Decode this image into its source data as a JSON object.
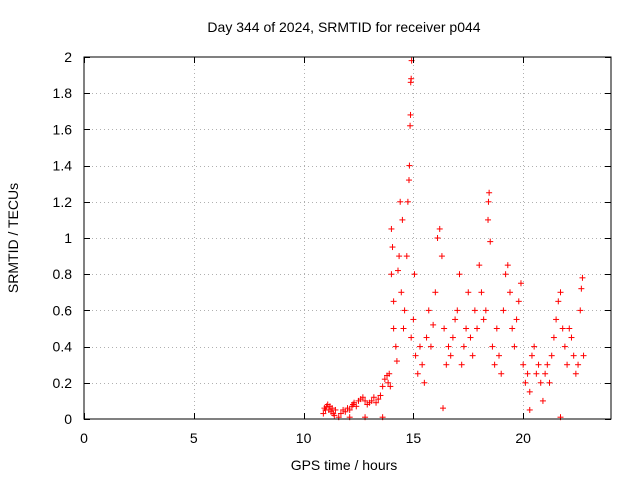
{
  "chart_data": {
    "type": "scatter",
    "title": "Day 344 of 2024, SRMTID for receiver p044",
    "xlabel": "GPS time / hours",
    "ylabel": "SRMTID / TECUs",
    "xlim": [
      0,
      24
    ],
    "ylim": [
      0,
      2
    ],
    "xticks": [
      0,
      5,
      10,
      15,
      20
    ],
    "xtick_labels": [
      "0",
      "5",
      "10",
      "15",
      "20"
    ],
    "yticks": [
      0,
      0.2,
      0.4,
      0.6,
      0.8,
      1.0,
      1.2,
      1.4,
      1.6,
      1.8,
      2.0
    ],
    "ytick_labels": [
      "0",
      "0.2",
      "0.4",
      "0.6",
      "0.8",
      "1",
      "1.2",
      "1.4",
      "1.6",
      "1.8",
      "2"
    ],
    "grid": true,
    "marker": "+",
    "marker_color": "#ff0000",
    "series": [
      {
        "name": "SRMTID",
        "points": [
          [
            10.9,
            0.03
          ],
          [
            10.95,
            0.06
          ],
          [
            11.0,
            0.05
          ],
          [
            11.05,
            0.07
          ],
          [
            11.1,
            0.08
          ],
          [
            11.15,
            0.05
          ],
          [
            11.2,
            0.07
          ],
          [
            11.25,
            0.04
          ],
          [
            11.3,
            0.06
          ],
          [
            11.35,
            0.03
          ],
          [
            11.4,
            0.02
          ],
          [
            11.45,
            0.05
          ],
          [
            11.6,
            0.01
          ],
          [
            11.7,
            0.03
          ],
          [
            11.8,
            0.05
          ],
          [
            11.9,
            0.04
          ],
          [
            12.0,
            0.06
          ],
          [
            12.1,
            0.05
          ],
          [
            12.2,
            0.07
          ],
          [
            12.25,
            0.08
          ],
          [
            12.3,
            0.09
          ],
          [
            12.4,
            0.07
          ],
          [
            12.5,
            0.1
          ],
          [
            12.6,
            0.11
          ],
          [
            12.7,
            0.12
          ],
          [
            12.8,
            0.1
          ],
          [
            12.9,
            0.08
          ],
          [
            13.0,
            0.09
          ],
          [
            13.1,
            0.1
          ],
          [
            13.2,
            0.12
          ],
          [
            13.3,
            0.09
          ],
          [
            13.4,
            0.11
          ],
          [
            13.5,
            0.13
          ],
          [
            13.6,
            0.18
          ],
          [
            13.7,
            0.22
          ],
          [
            13.8,
            0.24
          ],
          [
            13.85,
            0.2
          ],
          [
            13.9,
            0.25
          ],
          [
            13.95,
            0.18
          ],
          [
            12.1,
            0.01
          ],
          [
            12.8,
            0.01
          ],
          [
            13.6,
            0.01
          ],
          [
            14.0,
            0.8
          ],
          [
            14.0,
            1.05
          ],
          [
            14.05,
            0.95
          ],
          [
            14.1,
            0.5
          ],
          [
            14.1,
            0.65
          ],
          [
            14.2,
            0.4
          ],
          [
            14.25,
            0.32
          ],
          [
            14.3,
            0.82
          ],
          [
            14.35,
            0.9
          ],
          [
            14.4,
            1.2
          ],
          [
            14.45,
            0.7
          ],
          [
            14.5,
            1.1
          ],
          [
            14.55,
            0.5
          ],
          [
            14.6,
            0.6
          ],
          [
            14.7,
            0.9
          ],
          [
            14.75,
            1.2
          ],
          [
            14.8,
            1.32
          ],
          [
            14.82,
            1.4
          ],
          [
            14.85,
            1.62
          ],
          [
            14.87,
            1.68
          ],
          [
            14.88,
            1.86
          ],
          [
            14.9,
            1.88
          ],
          [
            14.92,
            1.98
          ],
          [
            14.9,
            0.45
          ],
          [
            15.0,
            0.55
          ],
          [
            15.05,
            0.8
          ],
          [
            15.1,
            0.35
          ],
          [
            15.2,
            0.25
          ],
          [
            15.3,
            0.4
          ],
          [
            15.4,
            0.3
          ],
          [
            15.5,
            0.2
          ],
          [
            15.6,
            0.45
          ],
          [
            15.7,
            0.6
          ],
          [
            15.8,
            0.4
          ],
          [
            15.9,
            0.52
          ],
          [
            16.0,
            0.7
          ],
          [
            16.1,
            1.0
          ],
          [
            16.2,
            1.05
          ],
          [
            16.3,
            0.9
          ],
          [
            16.35,
            0.06
          ],
          [
            16.4,
            0.5
          ],
          [
            16.5,
            0.3
          ],
          [
            16.6,
            0.4
          ],
          [
            16.7,
            0.35
          ],
          [
            16.8,
            0.45
          ],
          [
            16.9,
            0.55
          ],
          [
            17.0,
            0.6
          ],
          [
            17.1,
            0.8
          ],
          [
            17.2,
            0.3
          ],
          [
            17.3,
            0.4
          ],
          [
            17.4,
            0.5
          ],
          [
            17.5,
            0.7
          ],
          [
            17.6,
            0.45
          ],
          [
            17.7,
            0.35
          ],
          [
            17.8,
            0.6
          ],
          [
            17.9,
            0.5
          ],
          [
            18.0,
            0.85
          ],
          [
            18.1,
            0.7
          ],
          [
            18.2,
            0.55
          ],
          [
            18.3,
            0.6
          ],
          [
            18.4,
            1.1
          ],
          [
            18.42,
            1.2
          ],
          [
            18.45,
            1.25
          ],
          [
            18.5,
            0.98
          ],
          [
            18.6,
            0.4
          ],
          [
            18.7,
            0.3
          ],
          [
            18.8,
            0.5
          ],
          [
            18.9,
            0.35
          ],
          [
            19.0,
            0.25
          ],
          [
            19.1,
            0.6
          ],
          [
            19.2,
            0.8
          ],
          [
            19.3,
            0.85
          ],
          [
            19.4,
            0.7
          ],
          [
            19.5,
            0.5
          ],
          [
            19.6,
            0.4
          ],
          [
            19.7,
            0.55
          ],
          [
            19.8,
            0.65
          ],
          [
            19.9,
            0.75
          ],
          [
            20.0,
            0.3
          ],
          [
            20.1,
            0.2
          ],
          [
            20.2,
            0.25
          ],
          [
            20.3,
            0.15
          ],
          [
            20.4,
            0.35
          ],
          [
            20.5,
            0.4
          ],
          [
            20.6,
            0.25
          ],
          [
            20.7,
            0.3
          ],
          [
            20.8,
            0.2
          ],
          [
            20.9,
            0.1
          ],
          [
            21.0,
            0.25
          ],
          [
            21.1,
            0.3
          ],
          [
            21.2,
            0.2
          ],
          [
            21.3,
            0.35
          ],
          [
            21.4,
            0.45
          ],
          [
            21.5,
            0.55
          ],
          [
            21.6,
            0.65
          ],
          [
            21.7,
            0.7
          ],
          [
            21.8,
            0.5
          ],
          [
            21.9,
            0.4
          ],
          [
            22.0,
            0.3
          ],
          [
            22.1,
            0.5
          ],
          [
            22.2,
            0.45
          ],
          [
            22.3,
            0.35
          ],
          [
            22.4,
            0.25
          ],
          [
            22.5,
            0.3
          ],
          [
            22.6,
            0.6
          ],
          [
            22.65,
            0.72
          ],
          [
            22.7,
            0.78
          ],
          [
            22.75,
            0.35
          ],
          [
            21.7,
            0.01
          ],
          [
            20.3,
            0.05
          ]
        ]
      }
    ]
  }
}
